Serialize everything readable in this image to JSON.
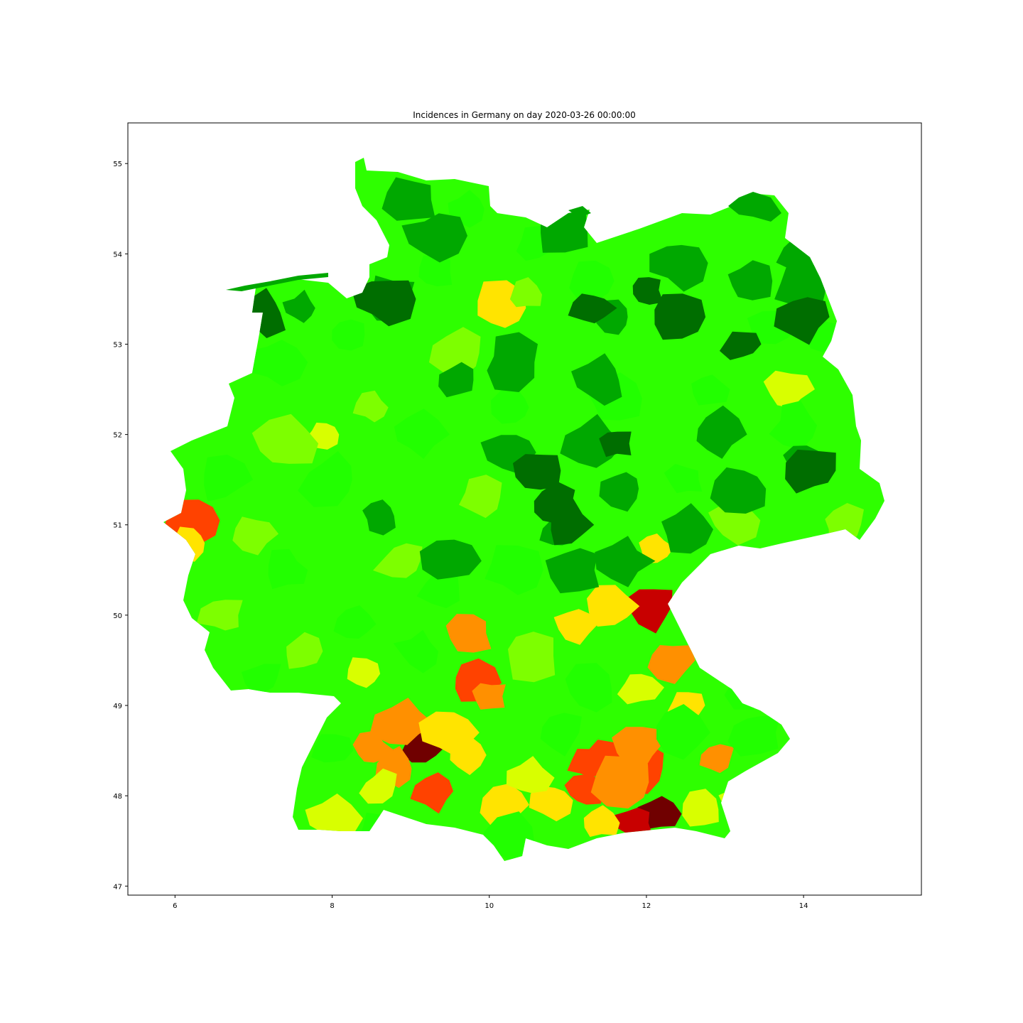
{
  "title": "Incidences in Germany on day 2020-03-26 00:00:00",
  "chart_data": {
    "type": "choropleth",
    "title": "Incidences in Germany on day 2020-03-26 00:00:00",
    "xlabel": "",
    "ylabel": "",
    "xlim": [
      5.4,
      15.5
    ],
    "ylim": [
      46.9,
      55.45
    ],
    "x_ticks": [
      6,
      8,
      10,
      12,
      14
    ],
    "y_ticks": [
      47,
      48,
      49,
      50,
      51,
      52,
      53,
      54,
      55
    ],
    "grid": false,
    "colormap": [
      "#006400",
      "#00b000",
      "#00ff00",
      "#66ff00",
      "#ccff00",
      "#ffff00",
      "#ffa500",
      "#ff2000",
      "#c00000",
      "#6b0000"
    ],
    "colors": {
      "dark_green": "#006e00",
      "green": "#00a800",
      "bright_green": "#22ff00",
      "lime": "#7dff00",
      "yellow_green": "#d8ff00",
      "yellow": "#ffe400",
      "orange": "#ff9000",
      "red_orange": "#ff4200",
      "red": "#c80000",
      "dark_red": "#700000"
    },
    "regions": [
      {
        "lon": 9.15,
        "lat": 48.55,
        "level": "dark_red"
      },
      {
        "lon": 12.15,
        "lat": 47.8,
        "level": "dark_red"
      },
      {
        "lon": 11.85,
        "lat": 47.7,
        "level": "red"
      },
      {
        "lon": 12.05,
        "lat": 50.1,
        "level": "red"
      },
      {
        "lon": 9.3,
        "lat": 48.05,
        "level": "red_orange"
      },
      {
        "lon": 9.8,
        "lat": 49.25,
        "level": "red_orange"
      },
      {
        "lon": 6.25,
        "lat": 51.05,
        "level": "red_orange"
      },
      {
        "lon": 11.95,
        "lat": 48.3,
        "level": "red_orange"
      },
      {
        "lon": 11.55,
        "lat": 48.4,
        "level": "red_orange"
      },
      {
        "lon": 11.25,
        "lat": 48.35,
        "level": "red_orange"
      },
      {
        "lon": 11.2,
        "lat": 48.05,
        "level": "red_orange"
      },
      {
        "lon": 8.5,
        "lat": 48.5,
        "level": "orange"
      },
      {
        "lon": 8.8,
        "lat": 48.3,
        "level": "orange"
      },
      {
        "lon": 10.0,
        "lat": 49.1,
        "level": "orange"
      },
      {
        "lon": 12.3,
        "lat": 49.5,
        "level": "orange"
      },
      {
        "lon": 12.9,
        "lat": 48.4,
        "level": "orange"
      },
      {
        "lon": 11.9,
        "lat": 48.55,
        "level": "orange"
      },
      {
        "lon": 11.7,
        "lat": 48.15,
        "level": "orange"
      },
      {
        "lon": 9.75,
        "lat": 49.8,
        "level": "orange"
      },
      {
        "lon": 8.9,
        "lat": 48.8,
        "level": "orange"
      },
      {
        "lon": 12.5,
        "lat": 49.0,
        "level": "yellow"
      },
      {
        "lon": 11.1,
        "lat": 49.9,
        "level": "yellow"
      },
      {
        "lon": 11.55,
        "lat": 50.1,
        "level": "yellow"
      },
      {
        "lon": 12.1,
        "lat": 50.75,
        "level": "yellow"
      },
      {
        "lon": 11.4,
        "lat": 47.7,
        "level": "yellow"
      },
      {
        "lon": 10.8,
        "lat": 47.95,
        "level": "yellow"
      },
      {
        "lon": 9.7,
        "lat": 48.45,
        "level": "yellow"
      },
      {
        "lon": 9.5,
        "lat": 48.7,
        "level": "yellow"
      },
      {
        "lon": 10.2,
        "lat": 47.9,
        "level": "yellow"
      },
      {
        "lon": 6.2,
        "lat": 50.8,
        "level": "yellow"
      },
      {
        "lon": 10.15,
        "lat": 53.4,
        "level": "yellow"
      },
      {
        "lon": 12.7,
        "lat": 47.85,
        "level": "yellow_green"
      },
      {
        "lon": 10.5,
        "lat": 48.2,
        "level": "yellow_green"
      },
      {
        "lon": 8.6,
        "lat": 48.1,
        "level": "yellow_green"
      },
      {
        "lon": 8.0,
        "lat": 47.75,
        "level": "yellow_green"
      },
      {
        "lon": 11.9,
        "lat": 49.2,
        "level": "yellow_green"
      },
      {
        "lon": 7.9,
        "lat": 52.0,
        "level": "yellow_green"
      },
      {
        "lon": 8.4,
        "lat": 49.35,
        "level": "yellow_green"
      },
      {
        "lon": 13.3,
        "lat": 47.9,
        "level": "yellow_green"
      },
      {
        "lon": 13.8,
        "lat": 52.5,
        "level": "yellow_green"
      },
      {
        "lon": 10.45,
        "lat": 53.55,
        "level": "lime"
      },
      {
        "lon": 8.5,
        "lat": 52.3,
        "level": "lime"
      },
      {
        "lon": 7.4,
        "lat": 51.9,
        "level": "lime"
      },
      {
        "lon": 7.0,
        "lat": 50.9,
        "level": "lime"
      },
      {
        "lon": 6.6,
        "lat": 50.0,
        "level": "lime"
      },
      {
        "lon": 7.6,
        "lat": 49.6,
        "level": "lime"
      },
      {
        "lon": 8.9,
        "lat": 50.6,
        "level": "lime"
      },
      {
        "lon": 9.9,
        "lat": 51.3,
        "level": "lime"
      },
      {
        "lon": 10.5,
        "lat": 49.55,
        "level": "lime"
      },
      {
        "lon": 13.1,
        "lat": 51.05,
        "level": "lime"
      },
      {
        "lon": 14.5,
        "lat": 51.0,
        "level": "lime"
      },
      {
        "lon": 9.6,
        "lat": 52.9,
        "level": "lime"
      },
      {
        "lon": 7.3,
        "lat": 52.8,
        "level": "bright_green"
      },
      {
        "lon": 8.2,
        "lat": 53.1,
        "level": "bright_green"
      },
      {
        "lon": 9.3,
        "lat": 53.8,
        "level": "bright_green"
      },
      {
        "lon": 9.7,
        "lat": 54.5,
        "level": "bright_green"
      },
      {
        "lon": 10.6,
        "lat": 54.1,
        "level": "bright_green"
      },
      {
        "lon": 11.3,
        "lat": 53.7,
        "level": "bright_green"
      },
      {
        "lon": 8.0,
        "lat": 51.5,
        "level": "bright_green"
      },
      {
        "lon": 6.6,
        "lat": 51.5,
        "level": "bright_green"
      },
      {
        "lon": 7.4,
        "lat": 50.5,
        "level": "bright_green"
      },
      {
        "lon": 8.3,
        "lat": 49.9,
        "level": "bright_green"
      },
      {
        "lon": 7.1,
        "lat": 49.3,
        "level": "bright_green"
      },
      {
        "lon": 9.1,
        "lat": 49.6,
        "level": "bright_green"
      },
      {
        "lon": 9.4,
        "lat": 50.3,
        "level": "bright_green"
      },
      {
        "lon": 10.3,
        "lat": 50.5,
        "level": "bright_green"
      },
      {
        "lon": 9.1,
        "lat": 52.0,
        "level": "bright_green"
      },
      {
        "lon": 10.3,
        "lat": 52.3,
        "level": "bright_green"
      },
      {
        "lon": 11.6,
        "lat": 52.4,
        "level": "bright_green"
      },
      {
        "lon": 12.8,
        "lat": 52.5,
        "level": "bright_green"
      },
      {
        "lon": 13.9,
        "lat": 52.1,
        "level": "bright_green"
      },
      {
        "lon": 12.5,
        "lat": 51.5,
        "level": "bright_green"
      },
      {
        "lon": 14.2,
        "lat": 53.1,
        "level": "bright_green"
      },
      {
        "lon": 13.6,
        "lat": 53.2,
        "level": "bright_green"
      },
      {
        "lon": 8.6,
        "lat": 47.6,
        "level": "bright_green"
      },
      {
        "lon": 10.3,
        "lat": 47.5,
        "level": "bright_green"
      },
      {
        "lon": 10.9,
        "lat": 48.7,
        "level": "bright_green"
      },
      {
        "lon": 11.3,
        "lat": 49.2,
        "level": "bright_green"
      },
      {
        "lon": 13.3,
        "lat": 49.2,
        "level": "bright_green"
      },
      {
        "lon": 13.4,
        "lat": 48.7,
        "level": "bright_green"
      },
      {
        "lon": 12.4,
        "lat": 48.7,
        "level": "bright_green"
      },
      {
        "lon": 8.0,
        "lat": 48.5,
        "level": "bright_green"
      },
      {
        "lon": 9.3,
        "lat": 54.2,
        "level": "green"
      },
      {
        "lon": 8.75,
        "lat": 53.5,
        "level": "green"
      },
      {
        "lon": 7.6,
        "lat": 53.4,
        "level": "green"
      },
      {
        "lon": 9.0,
        "lat": 54.6,
        "level": "green"
      },
      {
        "lon": 10.9,
        "lat": 54.3,
        "level": "green"
      },
      {
        "lon": 11.6,
        "lat": 53.3,
        "level": "green"
      },
      {
        "lon": 12.4,
        "lat": 53.9,
        "level": "green"
      },
      {
        "lon": 13.3,
        "lat": 53.7,
        "level": "green"
      },
      {
        "lon": 14.0,
        "lat": 54.0,
        "level": "green"
      },
      {
        "lon": 14.0,
        "lat": 53.6,
        "level": "green"
      },
      {
        "lon": 10.3,
        "lat": 52.8,
        "level": "green"
      },
      {
        "lon": 9.6,
        "lat": 52.6,
        "level": "green"
      },
      {
        "lon": 11.4,
        "lat": 52.6,
        "level": "green"
      },
      {
        "lon": 11.3,
        "lat": 51.9,
        "level": "green"
      },
      {
        "lon": 11.7,
        "lat": 51.4,
        "level": "green"
      },
      {
        "lon": 10.3,
        "lat": 51.8,
        "level": "green"
      },
      {
        "lon": 10.9,
        "lat": 50.9,
        "level": "green"
      },
      {
        "lon": 12.5,
        "lat": 50.95,
        "level": "green"
      },
      {
        "lon": 13.2,
        "lat": 51.4,
        "level": "green"
      },
      {
        "lon": 14.0,
        "lat": 51.7,
        "level": "green"
      },
      {
        "lon": 8.6,
        "lat": 51.1,
        "level": "green"
      },
      {
        "lon": 9.5,
        "lat": 50.6,
        "level": "green"
      },
      {
        "lon": 11.1,
        "lat": 50.5,
        "level": "green"
      },
      {
        "lon": 11.7,
        "lat": 50.6,
        "level": "green"
      },
      {
        "lon": 12.9,
        "lat": 52.0,
        "level": "green"
      },
      {
        "lon": 12.4,
        "lat": 53.3,
        "level": "dark_green"
      },
      {
        "lon": 13.2,
        "lat": 53.0,
        "level": "dark_green"
      },
      {
        "lon": 14.0,
        "lat": 53.3,
        "level": "dark_green"
      },
      {
        "lon": 11.3,
        "lat": 53.4,
        "level": "dark_green"
      },
      {
        "lon": 12.0,
        "lat": 53.6,
        "level": "dark_green"
      },
      {
        "lon": 11.0,
        "lat": 51.0,
        "level": "dark_green"
      },
      {
        "lon": 10.8,
        "lat": 51.2,
        "level": "dark_green"
      },
      {
        "lon": 8.65,
        "lat": 53.5,
        "level": "dark_green"
      },
      {
        "lon": 7.1,
        "lat": 53.35,
        "level": "dark_green"
      },
      {
        "lon": 11.6,
        "lat": 51.9,
        "level": "dark_green"
      },
      {
        "lon": 10.6,
        "lat": 51.6,
        "level": "dark_green"
      },
      {
        "lon": 14.1,
        "lat": 51.6,
        "level": "dark_green"
      }
    ]
  }
}
